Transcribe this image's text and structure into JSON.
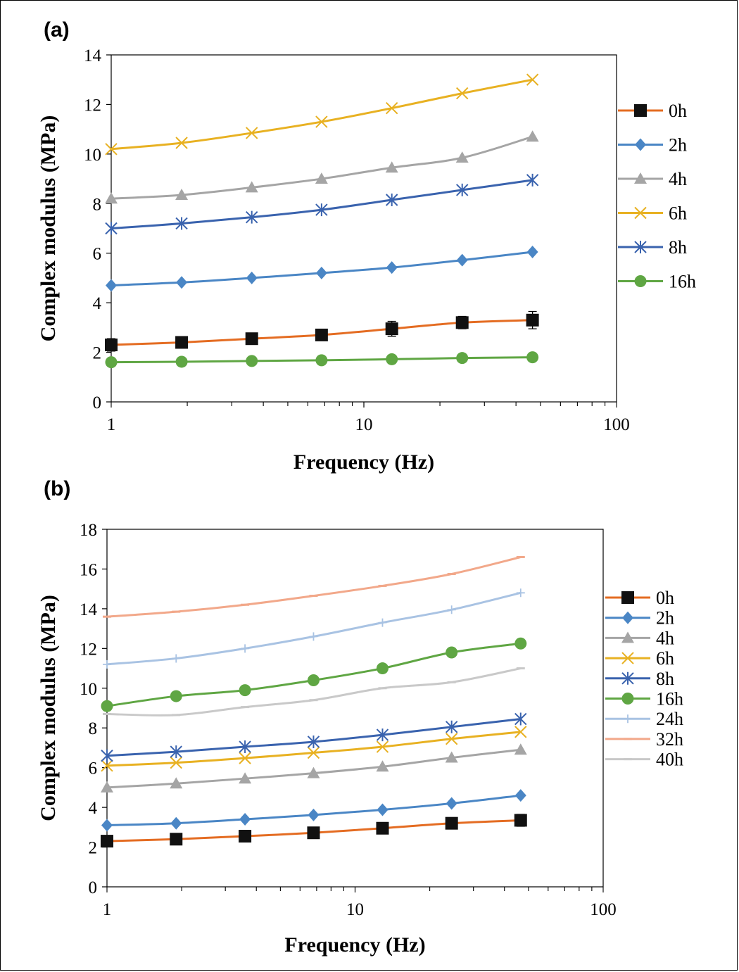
{
  "chart_data": [
    {
      "panel_label": "(a)",
      "type": "line",
      "xscale": "log",
      "xlim": [
        1,
        100
      ],
      "ylim": [
        0,
        14
      ],
      "yticks": [
        "0",
        "2",
        "4",
        "6",
        "8",
        "10",
        "12",
        "14"
      ],
      "xticks": [
        "1",
        "10",
        "100"
      ],
      "xlabel": "Frequency (Hz)",
      "ylabel": "Complex modulus (MPa)",
      "grid": false,
      "legend_position": "right",
      "x": [
        1,
        1.9,
        3.6,
        6.8,
        12.9,
        24.5,
        46.5
      ],
      "series": [
        {
          "name": "0h",
          "marker": "square",
          "color": "#E46C22",
          "marker_color": "#111111",
          "values": [
            2.3,
            2.4,
            2.55,
            2.7,
            2.95,
            3.2,
            3.3
          ],
          "error": [
            0.25,
            0.15,
            0.2,
            0.2,
            0.3,
            0.25,
            0.35
          ]
        },
        {
          "name": "2h",
          "marker": "diamond",
          "color": "#4A86C5",
          "values": [
            4.7,
            4.82,
            5.0,
            5.2,
            5.42,
            5.72,
            6.05
          ]
        },
        {
          "name": "4h",
          "marker": "triangle",
          "color": "#A5A5A5",
          "values": [
            8.2,
            8.35,
            8.65,
            9.0,
            9.45,
            9.85,
            10.7
          ]
        },
        {
          "name": "6h",
          "marker": "x",
          "color": "#E8B122",
          "values": [
            10.2,
            10.45,
            10.85,
            11.3,
            11.85,
            12.45,
            13.0
          ]
        },
        {
          "name": "8h",
          "marker": "asterisk",
          "color": "#3A63AE",
          "values": [
            7.0,
            7.2,
            7.45,
            7.75,
            8.15,
            8.55,
            8.95
          ]
        },
        {
          "name": "16h",
          "marker": "circle",
          "color": "#5FA643",
          "values": [
            1.6,
            1.62,
            1.65,
            1.68,
            1.72,
            1.77,
            1.8
          ]
        }
      ]
    },
    {
      "panel_label": "(b)",
      "type": "line",
      "xscale": "log",
      "xlim": [
        1,
        100
      ],
      "ylim": [
        0,
        18
      ],
      "yticks": [
        "0",
        "2",
        "4",
        "6",
        "8",
        "10",
        "12",
        "14",
        "16",
        "18"
      ],
      "xticks": [
        "1",
        "10",
        "100"
      ],
      "xlabel": "Frequency (Hz)",
      "ylabel": "Complex modulus (MPa)",
      "grid": false,
      "legend_position": "right",
      "x": [
        1,
        1.9,
        3.6,
        6.8,
        12.9,
        24.5,
        46.5
      ],
      "series": [
        {
          "name": "0h",
          "marker": "square",
          "color": "#E46C22",
          "marker_color": "#111111",
          "values": [
            2.3,
            2.4,
            2.55,
            2.72,
            2.95,
            3.2,
            3.35
          ],
          "error": [
            0.15,
            0.1,
            0.15,
            0.15,
            0.2,
            0.15,
            0.3
          ]
        },
        {
          "name": "2h",
          "marker": "diamond",
          "color": "#4A86C5",
          "values": [
            3.1,
            3.2,
            3.4,
            3.62,
            3.88,
            4.2,
            4.6
          ]
        },
        {
          "name": "4h",
          "marker": "triangle",
          "color": "#A5A5A5",
          "values": [
            5.0,
            5.2,
            5.45,
            5.72,
            6.05,
            6.5,
            6.9
          ]
        },
        {
          "name": "6h",
          "marker": "x",
          "color": "#E8B122",
          "values": [
            6.1,
            6.25,
            6.48,
            6.75,
            7.05,
            7.45,
            7.8
          ]
        },
        {
          "name": "8h",
          "marker": "asterisk",
          "color": "#3A63AE",
          "values": [
            6.6,
            6.8,
            7.05,
            7.3,
            7.65,
            8.05,
            8.45
          ]
        },
        {
          "name": "16h",
          "marker": "circle",
          "color": "#5FA643",
          "values": [
            9.1,
            9.6,
            9.9,
            10.4,
            11.0,
            11.8,
            12.25
          ]
        },
        {
          "name": "24h",
          "marker": "plus",
          "color": "#A9C3E3",
          "values": [
            11.2,
            11.5,
            12.0,
            12.6,
            13.3,
            13.95,
            14.8
          ]
        },
        {
          "name": "32h",
          "marker": "dash",
          "color": "#F2A88A",
          "values": [
            13.6,
            13.85,
            14.2,
            14.65,
            15.15,
            15.75,
            16.6
          ]
        },
        {
          "name": "40h",
          "marker": "dash",
          "color": "#C9C9C9",
          "values": [
            8.7,
            8.65,
            9.05,
            9.4,
            10.0,
            10.3,
            11.0
          ]
        }
      ]
    }
  ]
}
